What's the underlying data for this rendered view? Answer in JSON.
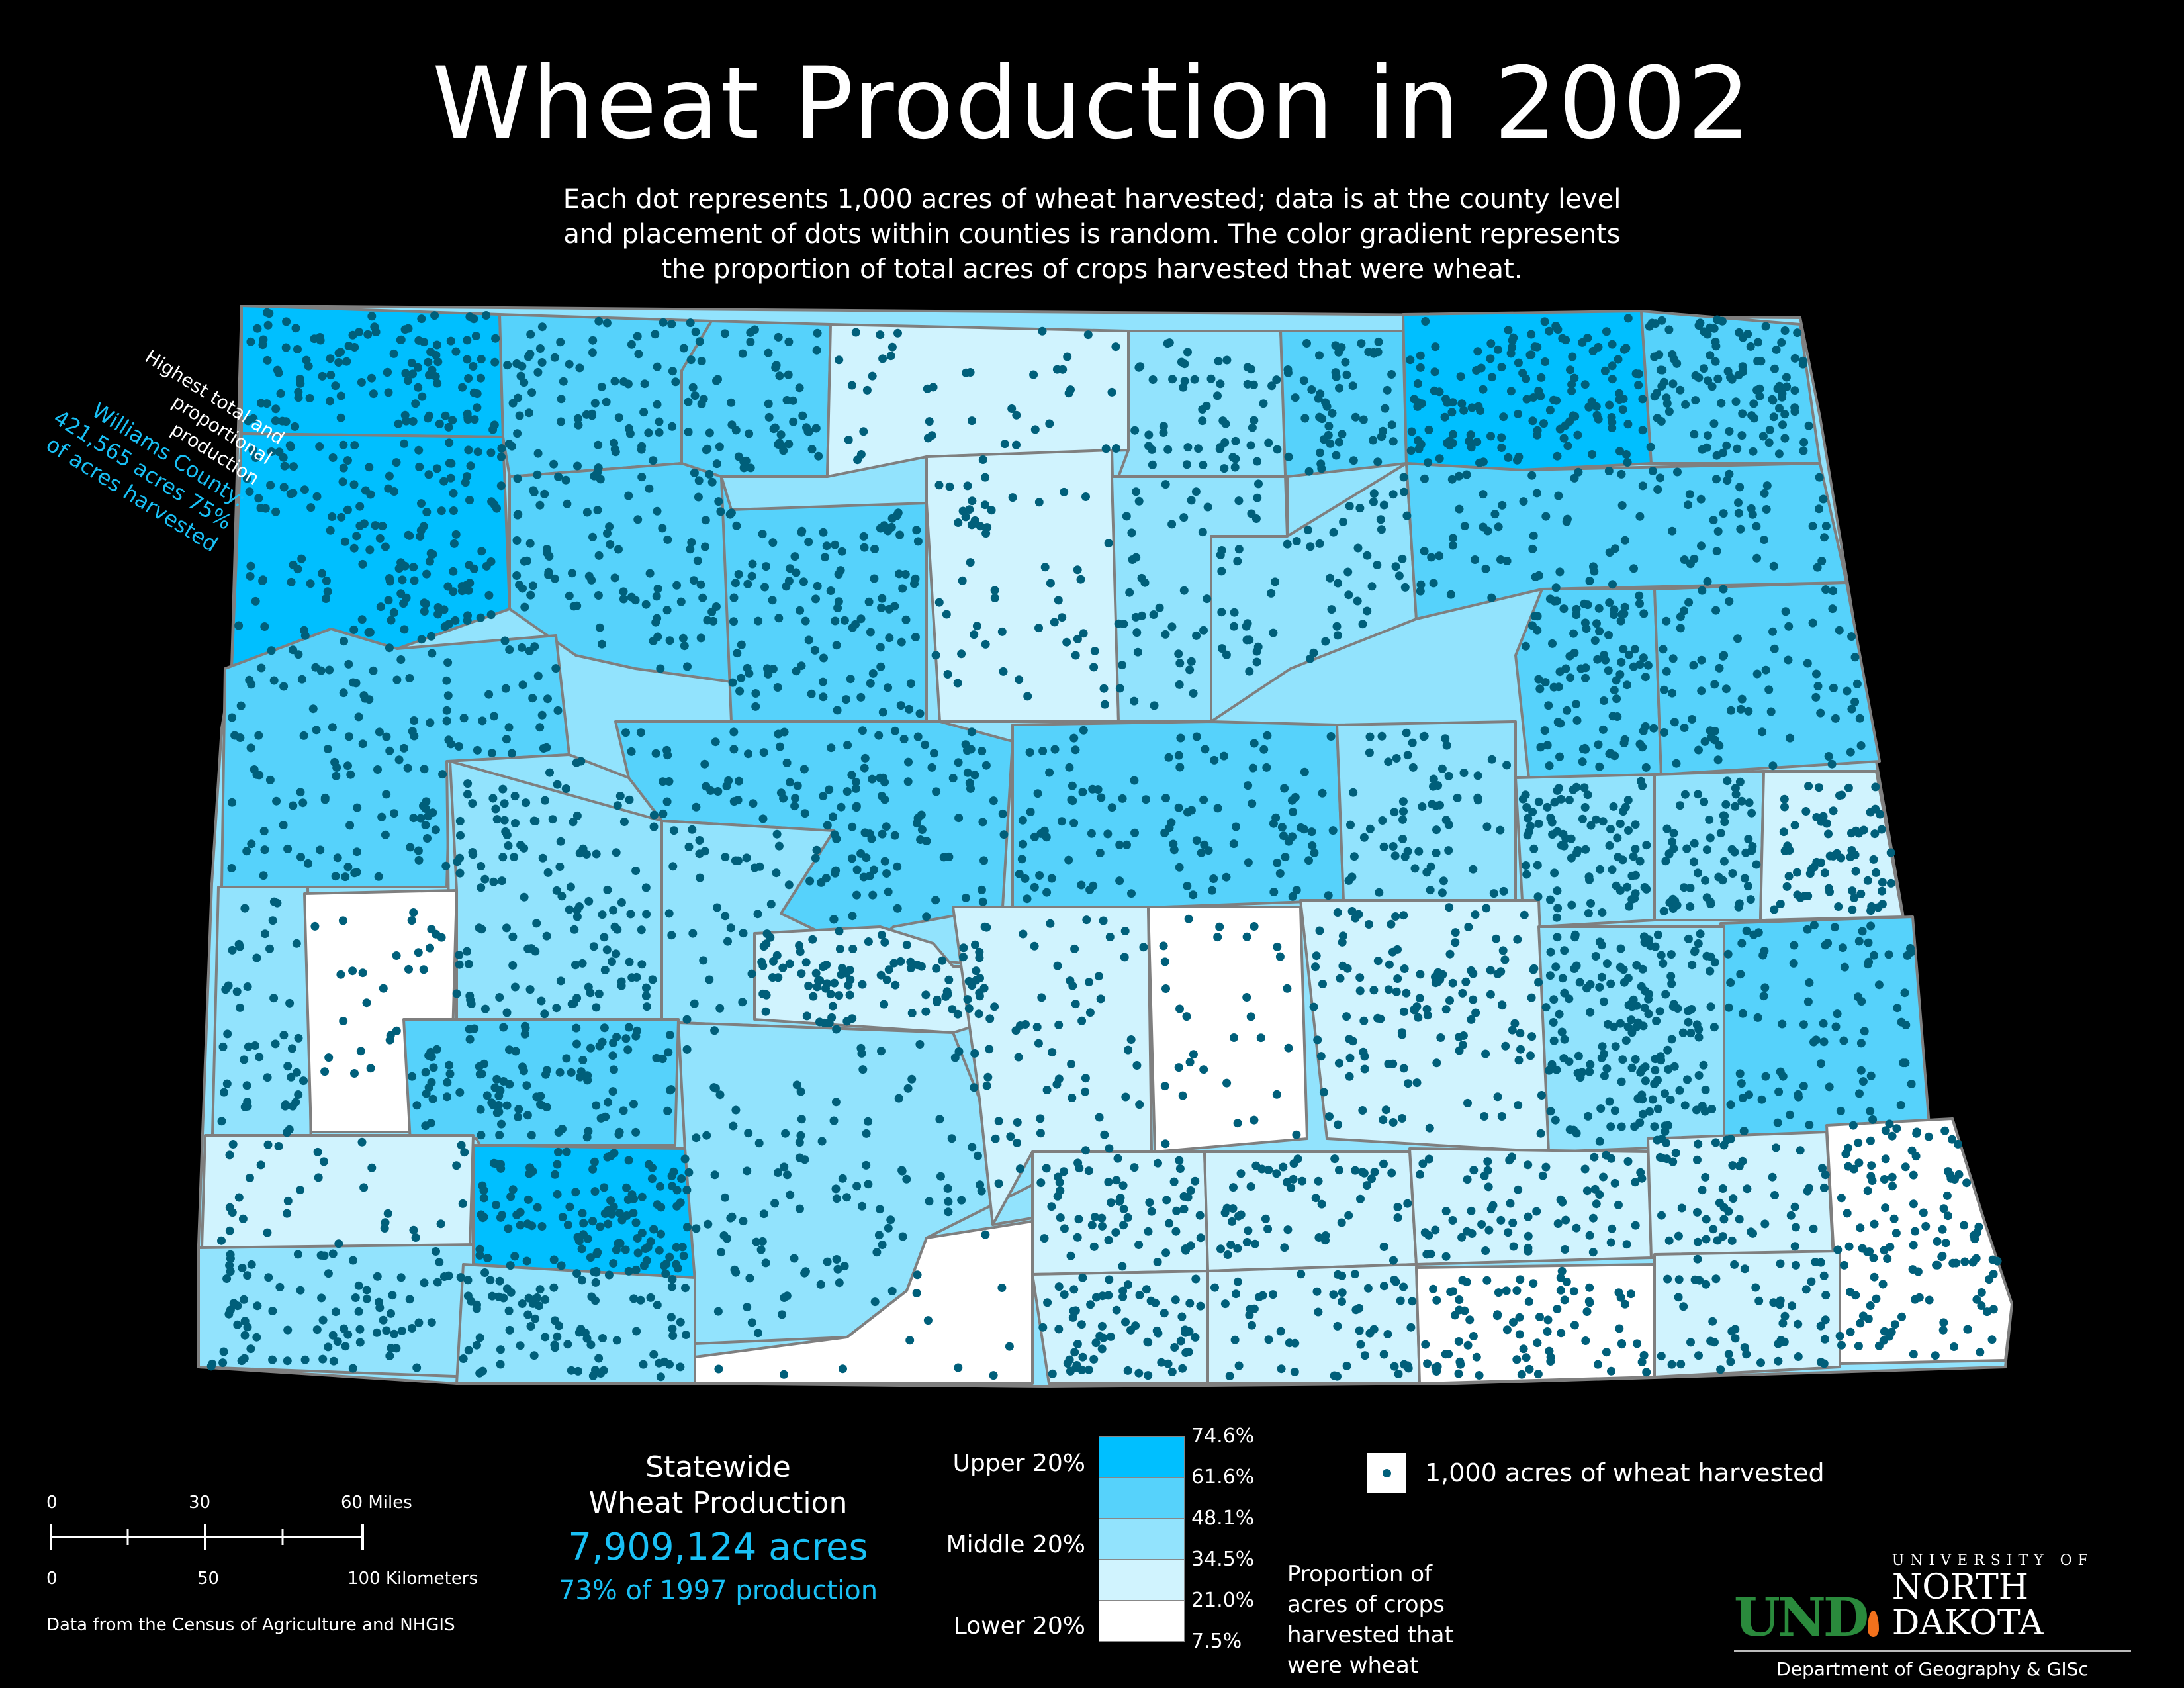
{
  "title": "Wheat Production in 2002",
  "subtitle": "Each dot represents 1,000 acres of wheat harvested; data is at the county level and placement of dots within counties is random. The color gradient represents the proportion of total acres of crops harvested that were wheat.",
  "annotation": {
    "line1": "Highest total and proportional production",
    "line2": "Williams County: 421,565 acres 75% of acres harvested"
  },
  "scale_bar": {
    "miles": [
      "0",
      "30",
      "60 Miles"
    ],
    "km": [
      "0",
      "50",
      "100 Kilometers"
    ]
  },
  "credit": "Data from the Census of Agriculture and NHGIS",
  "statewide": {
    "title_line1": "Statewide",
    "title_line2": "Wheat Production",
    "value": "7,909,124 acres",
    "pct": "73% of 1997 production"
  },
  "legend": {
    "groups": [
      "Upper 20%",
      "Middle 20%",
      "Lower 20%"
    ],
    "classes": [
      {
        "color": "#00bfff",
        "from": "61.6%",
        "to": "74.6%"
      },
      {
        "color": "#56d2fb",
        "from": "48.1%",
        "to": "61.6%"
      },
      {
        "color": "#92e3fd",
        "from": "34.5%",
        "to": "48.1%"
      },
      {
        "color": "#d0f3fe",
        "from": "21.0%",
        "to": "34.5%"
      },
      {
        "color": "#ffffff",
        "from": "7.5%",
        "to": "21.0%"
      }
    ],
    "breaks": [
      "74.6%",
      "61.6%",
      "48.1%",
      "34.5%",
      "21.0%",
      "7.5%"
    ],
    "caption": "Proportion of acres of crops harvested that were wheat",
    "dot_label": "1,000 acres of wheat harvested"
  },
  "logo": {
    "und": "UND",
    "university_of": "UNIVERSITY OF",
    "north_dakota": "NORTH DAKOTA",
    "department": "Department of Geography & GISc"
  },
  "colors": {
    "background": "#000000",
    "dot": "#005f7a",
    "border": "#7f7f7f",
    "accent": "#19c0f5"
  }
}
